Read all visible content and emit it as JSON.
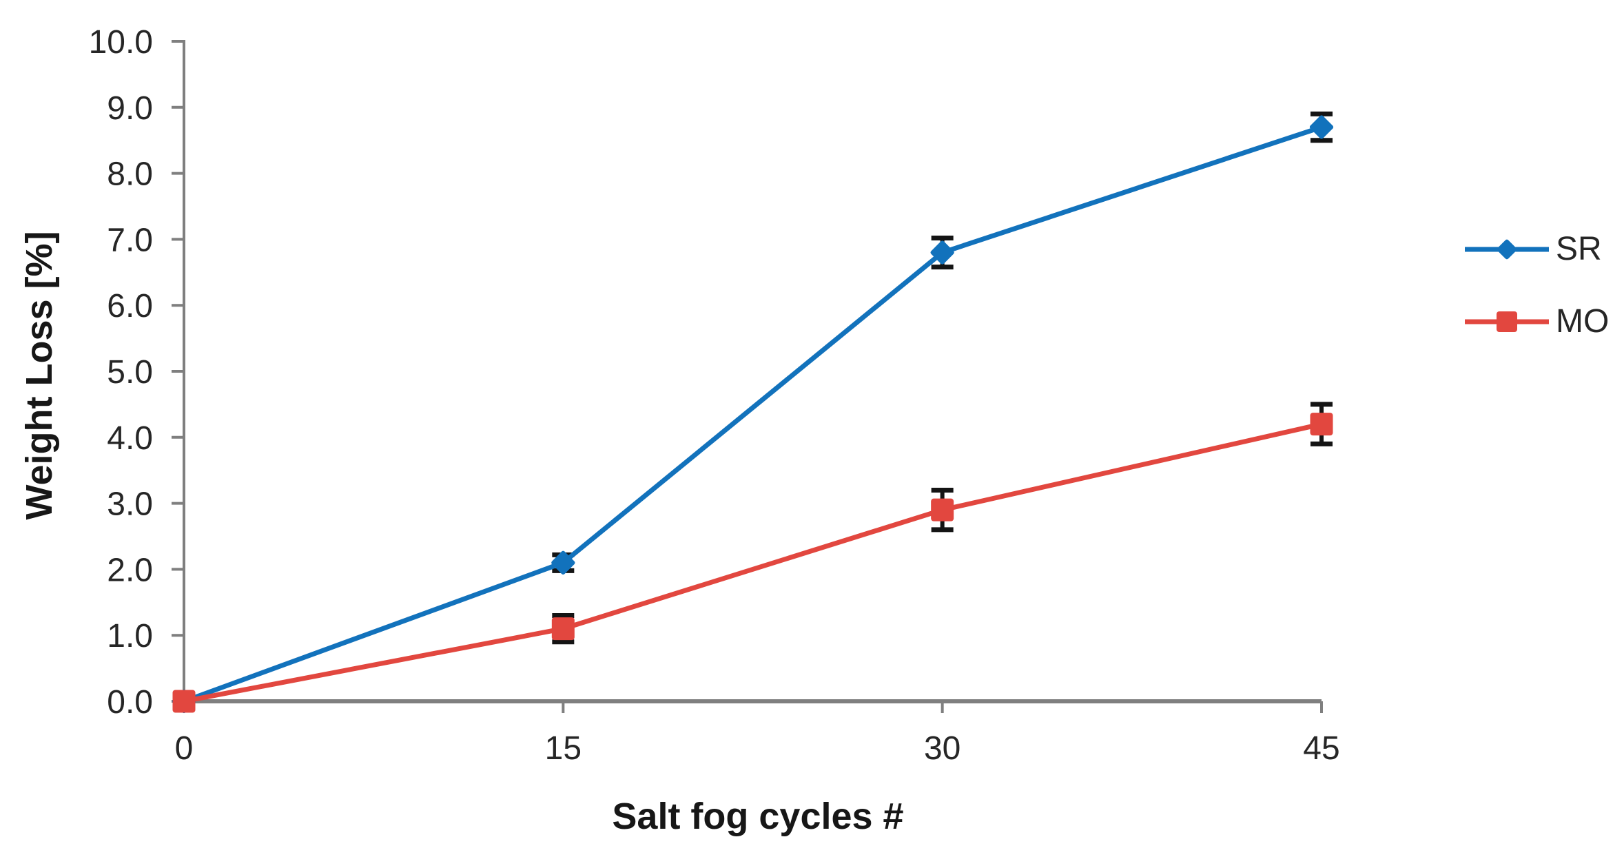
{
  "chart_data": {
    "type": "line",
    "title": "",
    "xlabel": "Salt fog cycles #",
    "ylabel": "Weight Loss [%]",
    "x": [
      0,
      15,
      30,
      45
    ],
    "x_tick_labels": [
      "0",
      "15",
      "30",
      "45"
    ],
    "y_ticks": [
      0,
      1,
      2,
      3,
      4,
      5,
      6,
      7,
      8,
      9,
      10
    ],
    "y_tick_labels": [
      "0.0",
      "1.0",
      "2.0",
      "3.0",
      "4.0",
      "5.0",
      "6.0",
      "7.0",
      "8.0",
      "9.0",
      "10.0"
    ],
    "xlim": [
      0,
      45
    ],
    "ylim": [
      0,
      10
    ],
    "grid": false,
    "legend_position": "right",
    "series": [
      {
        "name": "SR",
        "marker": "diamond",
        "color": "#1272bc",
        "values": [
          0.0,
          2.1,
          6.8,
          8.7
        ],
        "error": [
          0,
          0.12,
          0.22,
          0.2
        ]
      },
      {
        "name": "MO",
        "marker": "square",
        "color": "#e2473f",
        "values": [
          0.0,
          1.1,
          2.9,
          4.2
        ],
        "error": [
          0,
          0.2,
          0.3,
          0.3
        ]
      }
    ],
    "colors": {
      "axis": "#7f7f7f",
      "error_bar": "#141414",
      "tick_label": "#262626"
    }
  }
}
